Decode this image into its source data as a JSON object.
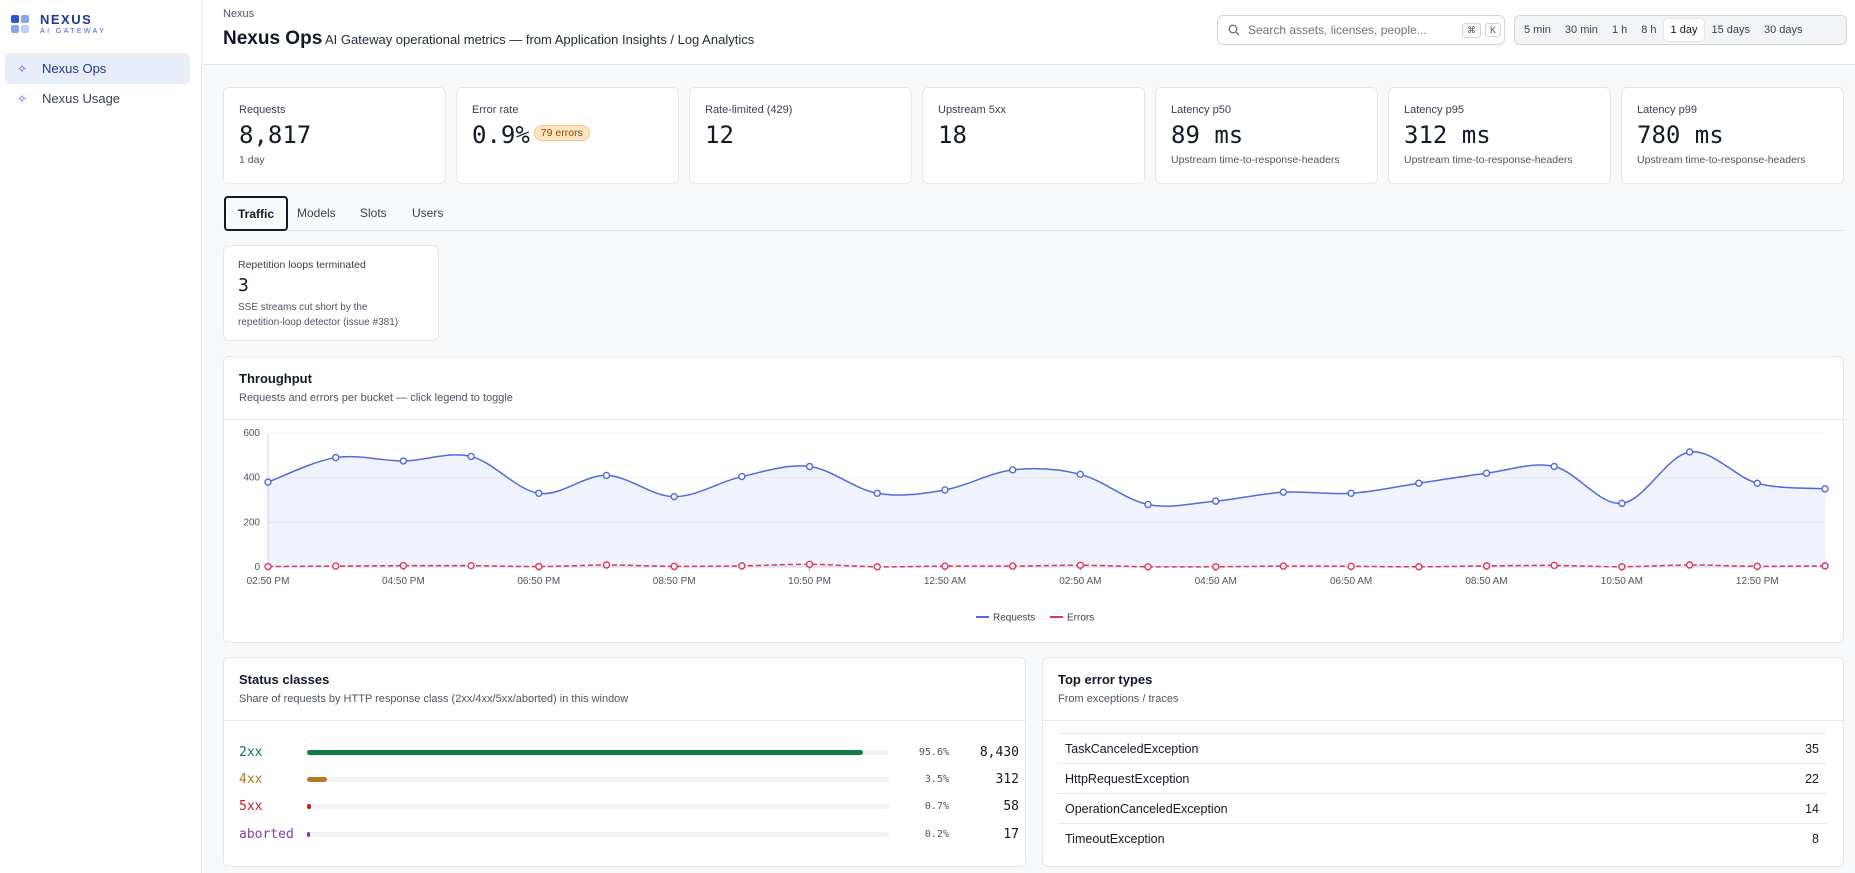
{
  "brand": {
    "name": "NEXUS",
    "tagline": "AI GATEWAY"
  },
  "sidebar": {
    "items": [
      {
        "label": "Nexus Ops",
        "icon": "sparkle-icon",
        "active": true
      },
      {
        "label": "Nexus Usage",
        "icon": "sparkle-icon",
        "active": false
      }
    ]
  },
  "header": {
    "breadcrumb": "Nexus",
    "title": "Nexus Ops",
    "subtitle": "AI Gateway operational metrics — from Application Insights / Log Analytics",
    "search_placeholder": "Search assets, licenses, people...",
    "shortcut_mod": "⌘",
    "shortcut_key": "K",
    "ranges": [
      "5 min",
      "30 min",
      "1 h",
      "8 h",
      "1 day",
      "15 days",
      "30 days"
    ],
    "active_range": "1 day"
  },
  "kpis": [
    {
      "label": "Requests",
      "value": "8,817",
      "note": "1 day"
    },
    {
      "label": "Error rate",
      "value": "0.9%",
      "badge": "79 errors"
    },
    {
      "label": "Rate-limited (429)",
      "value": "12"
    },
    {
      "label": "Upstream 5xx",
      "value": "18"
    },
    {
      "label": "Latency p50",
      "value": "89 ms",
      "note": "Upstream time-to-response-headers"
    },
    {
      "label": "Latency p95",
      "value": "312 ms",
      "note": "Upstream time-to-response-headers"
    },
    {
      "label": "Latency p99",
      "value": "780 ms",
      "note": "Upstream time-to-response-headers"
    }
  ],
  "tabs": [
    "Traffic",
    "Models",
    "Slots",
    "Users"
  ],
  "active_tab": "Traffic",
  "loops": {
    "label": "Repetition loops terminated",
    "value": "3",
    "note_line1": "SSE streams cut short by the",
    "note_line2": "repetition-loop detector (issue #381)"
  },
  "throughput": {
    "title": "Throughput",
    "subtitle": "Requests and errors per bucket — click legend to toggle"
  },
  "chart_data": {
    "type": "line",
    "x": [
      "02:50 PM",
      "03:50 PM",
      "04:50 PM",
      "05:50 PM",
      "06:50 PM",
      "07:50 PM",
      "08:50 PM",
      "09:50 PM",
      "10:50 PM",
      "11:50 PM",
      "12:50 AM",
      "01:50 AM",
      "02:50 AM",
      "03:50 AM",
      "04:50 AM",
      "05:50 AM",
      "06:50 AM",
      "07:50 AM",
      "08:50 AM",
      "09:50 AM",
      "10:50 AM",
      "11:50 AM",
      "12:50 PM",
      "01:50 PM"
    ],
    "xticks": [
      "02:50 PM",
      "04:50 PM",
      "06:50 PM",
      "08:50 PM",
      "10:50 PM",
      "12:50 AM",
      "02:50 AM",
      "04:50 AM",
      "06:50 AM",
      "08:50 AM",
      "10:50 AM",
      "12:50 PM"
    ],
    "yticks": [
      "0",
      "200",
      "400",
      "600"
    ],
    "ylim": [
      0,
      600
    ],
    "series": [
      {
        "name": "Requests",
        "color": "#4f6bdb",
        "style": "solid",
        "fill": true,
        "values": [
          380,
          490,
          475,
          495,
          330,
          410,
          315,
          405,
          450,
          330,
          345,
          435,
          415,
          280,
          295,
          335,
          330,
          375,
          420,
          450,
          285,
          515,
          375,
          350
        ]
      },
      {
        "name": "Errors",
        "color": "#e0355a",
        "style": "dashed",
        "fill": false,
        "values": [
          2,
          4,
          6,
          6,
          2,
          9,
          3,
          5,
          12,
          1,
          4,
          4,
          8,
          1,
          1,
          4,
          3,
          1,
          5,
          7,
          1,
          9,
          3,
          5
        ]
      }
    ],
    "legend": "bottom-center",
    "grid": true
  },
  "status_classes": {
    "title": "Status classes",
    "subtitle": "Share of requests by HTTP response class (2xx/4xx/5xx/aborted) in this window",
    "rows": [
      {
        "name": "2xx",
        "color": "#0f7b45",
        "fraction": 0.956,
        "pct": "95.6%",
        "count": "8,430"
      },
      {
        "name": "4xx",
        "color": "#b7791f",
        "fraction": 0.035,
        "pct": "3.5%",
        "count": "312"
      },
      {
        "name": "5xx",
        "color": "#c81e1e",
        "fraction": 0.007,
        "pct": "0.7%",
        "count": "58"
      },
      {
        "name": "aborted",
        "color": "#7e3fa6",
        "fraction": 0.002,
        "pct": "0.2%",
        "count": "17"
      }
    ]
  },
  "top_errors": {
    "title": "Top error types",
    "subtitle": "From exceptions / traces",
    "rows": [
      {
        "name": "TaskCanceledException",
        "count": "35"
      },
      {
        "name": "HttpRequestException",
        "count": "22"
      },
      {
        "name": "OperationCanceledException",
        "count": "14"
      },
      {
        "name": "TimeoutException",
        "count": "8"
      }
    ]
  }
}
